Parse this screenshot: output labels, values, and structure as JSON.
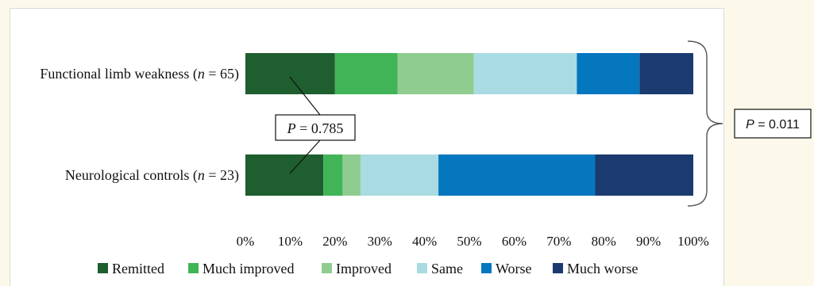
{
  "chart_data": {
    "type": "bar",
    "orientation": "horizontal",
    "stacked": true,
    "categories": [
      {
        "name": "Functional limb weakness",
        "n": "65"
      },
      {
        "name": "Neurological controls",
        "n": "23"
      }
    ],
    "series": [
      {
        "name": "Remitted",
        "color": "#1e5e2f",
        "values": [
          20,
          17.4
        ]
      },
      {
        "name": "Much improved",
        "color": "#40b456",
        "values": [
          14,
          4.3
        ]
      },
      {
        "name": "Improved",
        "color": "#8fcc8f",
        "values": [
          17,
          4
        ]
      },
      {
        "name": "Same",
        "color": "#a9dbe2",
        "values": [
          23,
          17.4
        ]
      },
      {
        "name": "Worse",
        "color": "#0577bf",
        "values": [
          14,
          35
        ]
      },
      {
        "name": "Much worse",
        "color": "#1a3a70",
        "values": [
          12,
          21.9
        ]
      }
    ],
    "xlim": [
      0,
      100
    ],
    "xticks": [
      "0%",
      "10%",
      "20%",
      "30%",
      "40%",
      "50%",
      "60%",
      "70%",
      "80%",
      "90%",
      "100%"
    ],
    "legend_position": "bottom",
    "grid": false,
    "annotations": [
      {
        "italic": "P",
        "text": " = 0.785"
      },
      {
        "italic": "P",
        "text": " = 0.011"
      }
    ]
  }
}
